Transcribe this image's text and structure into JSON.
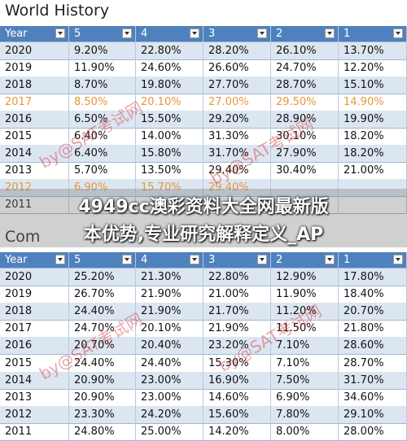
{
  "tables": [
    {
      "title": "World History",
      "header": [
        "Year",
        "5",
        "4",
        "3",
        "2",
        "1"
      ],
      "highlight_color": "#e8963a",
      "highlight_rows": [
        3,
        8
      ],
      "rows": [
        [
          "2020",
          "9.20%",
          "22.80%",
          "28.20%",
          "26.10%",
          "13.70%"
        ],
        [
          "2019",
          "11.90%",
          "24.60%",
          "26.60%",
          "24.70%",
          "12.20%"
        ],
        [
          "2018",
          "8.70%",
          "19.80%",
          "27.70%",
          "28.70%",
          "15.10%"
        ],
        [
          "2017",
          "8.50%",
          "20.10%",
          "27.00%",
          "29.50%",
          "14.90%"
        ],
        [
          "2016",
          "6.50%",
          "15.50%",
          "29.20%",
          "28.90%",
          "19.90%"
        ],
        [
          "2015",
          "6.40%",
          "14.00%",
          "31.30%",
          "30.10%",
          "18.20%"
        ],
        [
          "2014",
          "6.40%",
          "15.80%",
          "31.70%",
          "27.90%",
          "18.20%"
        ],
        [
          "2013",
          "5.70%",
          "13.50%",
          "29.40%",
          "30.40%",
          "21.00%"
        ],
        [
          "2012",
          "6.90%",
          "15.70%",
          "29.40%"
        ],
        [
          "2011"
        ]
      ]
    },
    {
      "title": "Com",
      "header": [
        "Year",
        "5",
        "4",
        "3",
        "2",
        "1"
      ],
      "highlight_color": "#e8963a",
      "highlight_rows": [],
      "rows": [
        [
          "2020",
          "25.20%",
          "21.30%",
          "22.80%",
          "12.90%",
          "17.80%"
        ],
        [
          "2019",
          "26.70%",
          "21.90%",
          "21.00%",
          "11.90%",
          "18.40%"
        ],
        [
          "2018",
          "24.40%",
          "21.90%",
          "21.70%",
          "11.20%",
          "20.70%"
        ],
        [
          "2017",
          "24.70%",
          "20.10%",
          "21.90%",
          "11.50%",
          "21.80%"
        ],
        [
          "2016",
          "20.70%",
          "20.40%",
          "23.20%",
          "7.10%",
          "28.60%"
        ],
        [
          "2015",
          "24.40%",
          "24.40%",
          "15.30%",
          "7.10%",
          "28.70%"
        ],
        [
          "2014",
          "20.90%",
          "23.00%",
          "16.90%",
          "7.50%",
          "31.70%"
        ],
        [
          "2013",
          "20.90%",
          "23.00%",
          "14.60%",
          "6.90%",
          "34.60%"
        ],
        [
          "2012",
          "23.30%",
          "24.20%",
          "15.60%",
          "7.80%",
          "29.10%"
        ],
        [
          "2011",
          "24.80%",
          "25.00%",
          "14.20%",
          "8.00%",
          "28.00%"
        ]
      ]
    }
  ],
  "banner": [
    "4949cc澳彩资料大全网最新版",
    "本优势,专业研究解释定义_AP"
  ],
  "watermarks": [
    "by@SAT考试网",
    "by@SAT考试网",
    "by@SAT考试网",
    "by@SAT考试网"
  ]
}
